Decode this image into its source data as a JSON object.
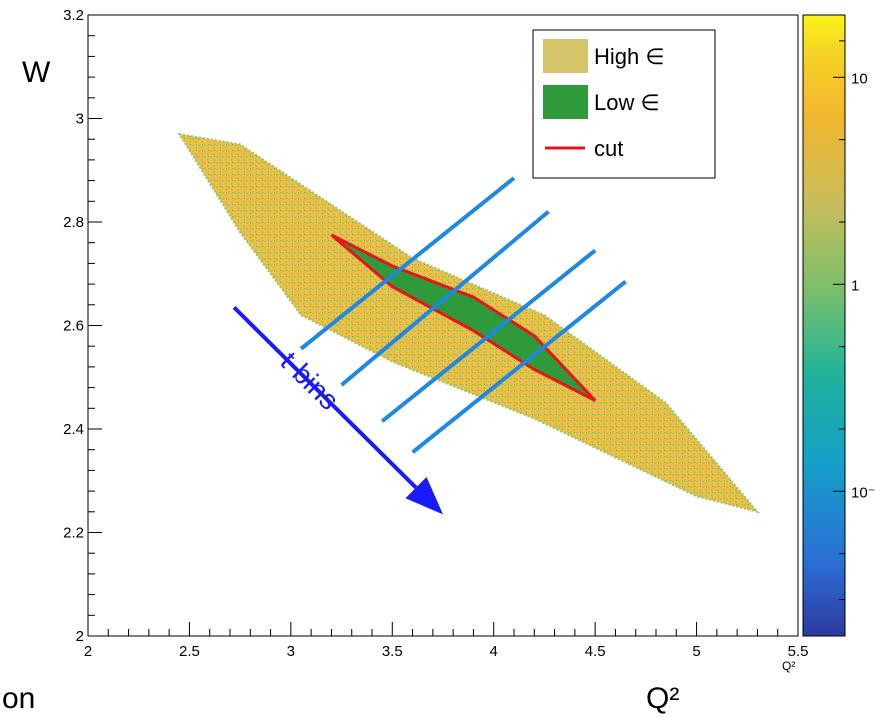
{
  "chart_data": {
    "type": "heatmap",
    "xlabel": "Q²",
    "ylabel": "W",
    "x_axis_label_large": "Q²",
    "x_axis_label_small": "Q²",
    "y_axis_label": "W",
    "xlim": [
      2,
      5.5
    ],
    "ylim": [
      2,
      3.2
    ],
    "xticks": [
      "2",
      "2.5",
      "3",
      "3.5",
      "4",
      "4.5",
      "5",
      "5.5"
    ],
    "yticks": [
      "2",
      "2.2",
      "2.4",
      "2.6",
      "2.8",
      "3",
      "3.2"
    ],
    "colorbar": {
      "scale": "log",
      "tick_labels": [
        "10",
        "1",
        "10⁻"
      ],
      "tick_values": [
        10,
        1,
        0.1
      ]
    },
    "legend": {
      "placement": "top-right",
      "entries": [
        {
          "label": "High ∈",
          "color": "#d4c46a"
        },
        {
          "label": "Low ∈",
          "color": "#2e9a3a"
        },
        {
          "label": "cut",
          "color": "#e8141a"
        }
      ]
    },
    "high_eps_region": [
      [
        2.45,
        2.97
      ],
      [
        2.75,
        2.95
      ],
      [
        3.6,
        2.73
      ],
      [
        4.25,
        2.62
      ],
      [
        4.85,
        2.45
      ],
      [
        5.3,
        2.24
      ],
      [
        5.0,
        2.27
      ],
      [
        4.2,
        2.42
      ],
      [
        3.5,
        2.53
      ],
      [
        3.05,
        2.62
      ],
      [
        2.75,
        2.78
      ]
    ],
    "low_eps_region": [
      [
        3.2,
        2.775
      ],
      [
        3.5,
        2.715
      ],
      [
        3.9,
        2.655
      ],
      [
        4.2,
        2.58
      ],
      [
        4.5,
        2.455
      ],
      [
        4.2,
        2.515
      ],
      [
        3.9,
        2.59
      ],
      [
        3.5,
        2.675
      ]
    ],
    "cut_polygon": [
      [
        3.2,
        2.775
      ],
      [
        3.5,
        2.715
      ],
      [
        3.9,
        2.655
      ],
      [
        4.2,
        2.58
      ],
      [
        4.5,
        2.455
      ],
      [
        4.2,
        2.515
      ],
      [
        3.9,
        2.59
      ],
      [
        3.5,
        2.675
      ],
      [
        3.2,
        2.775
      ]
    ],
    "tbin_lines": [
      [
        [
          3.05,
          2.555
        ],
        [
          4.1,
          2.885
        ]
      ],
      [
        [
          3.25,
          2.485
        ],
        [
          4.27,
          2.82
        ]
      ],
      [
        [
          3.45,
          2.415
        ],
        [
          4.5,
          2.745
        ]
      ],
      [
        [
          3.6,
          2.355
        ],
        [
          4.65,
          2.685
        ]
      ]
    ],
    "arrow": {
      "from": [
        2.72,
        2.635
      ],
      "to": [
        3.75,
        2.235
      ],
      "label": "t-bins",
      "color": "#1a1aff"
    },
    "tbin_line_color": "#1e88e5",
    "partial_text_bottom_left": "on"
  }
}
